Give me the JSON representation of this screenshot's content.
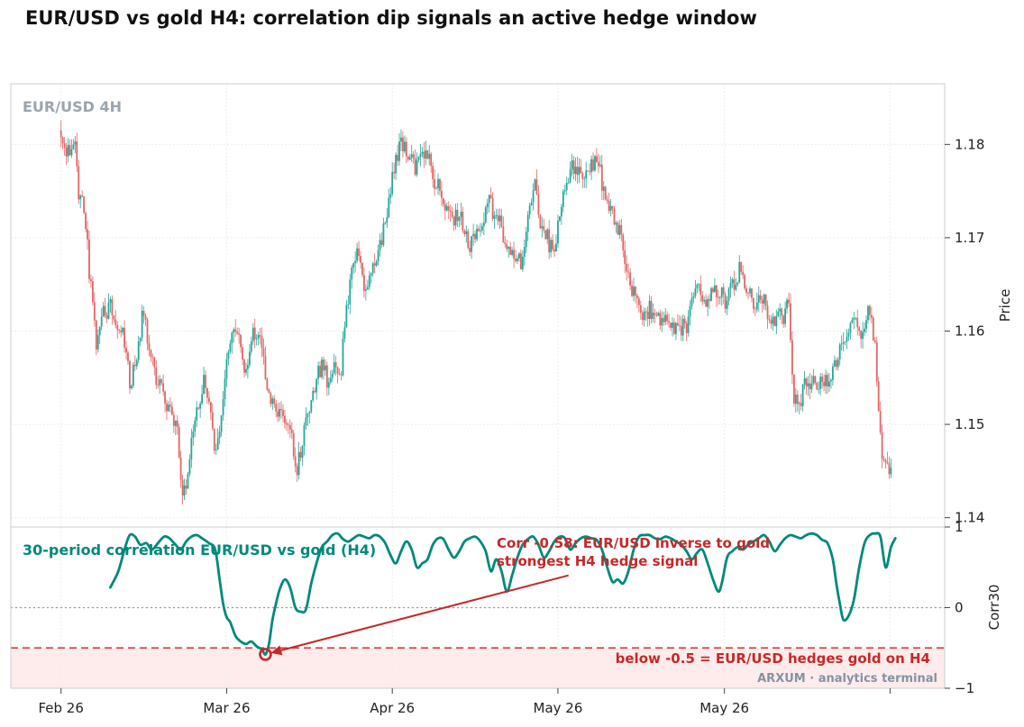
{
  "title": "EUR/USD vs gold H4: correlation dip signals an active hedge window",
  "watermark": "ARXUM · analytics terminal",
  "colors": {
    "up": "#26a69a",
    "down": "#e06666",
    "corr": "#00897b",
    "threshold": "#d64545",
    "annotation": "#c62828",
    "label_gray": "#9aa4ad",
    "watermark_gray": "#8592a3"
  },
  "chart_data": [
    {
      "type": "candlestick",
      "panel_label": "EUR/USD  4H",
      "ylabel": "Price",
      "ylim": [
        1.139,
        1.1865
      ],
      "yticks": [
        1.14,
        1.15,
        1.16,
        1.17,
        1.18
      ],
      "ytick_labels": [
        "1.14",
        "1.15",
        "1.16",
        "1.17",
        "1.18"
      ],
      "xlim": [
        -7,
        1053
      ],
      "xticks": [
        50,
        238,
        426,
        614,
        803,
        991
      ],
      "xtick_labels": [
        "Feb 26",
        "Mar 26",
        "Apr 26",
        "May 26",
        "May 26",
        ""
      ],
      "grid": true,
      "candle_count": 472,
      "candle_spacing": 2,
      "price_path": [
        [
          50,
          1.1815
        ],
        [
          60,
          1.1792
        ],
        [
          68,
          1.1805
        ],
        [
          72,
          1.1745
        ],
        [
          78,
          1.1735
        ],
        [
          85,
          1.1655
        ],
        [
          92,
          1.1585
        ],
        [
          100,
          1.1618
        ],
        [
          108,
          1.1625
        ],
        [
          115,
          1.1602
        ],
        [
          122,
          1.1598
        ],
        [
          130,
          1.1545
        ],
        [
          138,
          1.1572
        ],
        [
          145,
          1.1622
        ],
        [
          150,
          1.1595
        ],
        [
          158,
          1.1555
        ],
        [
          165,
          1.1548
        ],
        [
          172,
          1.1518
        ],
        [
          178,
          1.1505
        ],
        [
          185,
          1.1485
        ],
        [
          190,
          1.1425
        ],
        [
          195,
          1.1445
        ],
        [
          200,
          1.1475
        ],
        [
          208,
          1.1525
        ],
        [
          215,
          1.1545
        ],
        [
          222,
          1.1515
        ],
        [
          228,
          1.1465
        ],
        [
          233,
          1.1498
        ],
        [
          240,
          1.1575
        ],
        [
          248,
          1.1612
        ],
        [
          255,
          1.1588
        ],
        [
          262,
          1.1555
        ],
        [
          270,
          1.1602
        ],
        [
          278,
          1.1592
        ],
        [
          285,
          1.1545
        ],
        [
          292,
          1.1525
        ],
        [
          300,
          1.1515
        ],
        [
          308,
          1.1505
        ],
        [
          313,
          1.1485
        ],
        [
          320,
          1.1452
        ],
        [
          325,
          1.1475
        ],
        [
          332,
          1.1518
        ],
        [
          340,
          1.1542
        ],
        [
          348,
          1.1568
        ],
        [
          355,
          1.1542
        ],
        [
          362,
          1.1558
        ],
        [
          370,
          1.1562
        ],
        [
          376,
          1.1628
        ],
        [
          383,
          1.1668
        ],
        [
          390,
          1.1688
        ],
        [
          396,
          1.1648
        ],
        [
          402,
          1.1662
        ],
        [
          410,
          1.1672
        ],
        [
          418,
          1.1705
        ],
        [
          425,
          1.1748
        ],
        [
          432,
          1.1782
        ],
        [
          438,
          1.1802
        ],
        [
          445,
          1.1788
        ],
        [
          452,
          1.1775
        ],
        [
          460,
          1.1785
        ],
        [
          468,
          1.1792
        ],
        [
          474,
          1.1765
        ],
        [
          480,
          1.1755
        ],
        [
          488,
          1.1735
        ],
        [
          495,
          1.1718
        ],
        [
          502,
          1.1728
        ],
        [
          508,
          1.1712
        ],
        [
          515,
          1.1692
        ],
        [
          522,
          1.1702
        ],
        [
          530,
          1.1722
        ],
        [
          538,
          1.1738
        ],
        [
          545,
          1.1725
        ],
        [
          552,
          1.1708
        ],
        [
          560,
          1.1688
        ],
        [
          568,
          1.1682
        ],
        [
          575,
          1.1672
        ],
        [
          582,
          1.1715
        ],
        [
          590,
          1.1752
        ],
        [
          595,
          1.1718
        ],
        [
          602,
          1.1702
        ],
        [
          610,
          1.1688
        ],
        [
          618,
          1.1715
        ],
        [
          625,
          1.1758
        ],
        [
          632,
          1.1775
        ],
        [
          640,
          1.1768
        ],
        [
          648,
          1.1768
        ],
        [
          655,
          1.1782
        ],
        [
          662,
          1.1778
        ],
        [
          668,
          1.1752
        ],
        [
          675,
          1.1735
        ],
        [
          682,
          1.1718
        ],
        [
          690,
          1.1692
        ],
        [
          698,
          1.1652
        ],
        [
          705,
          1.1628
        ],
        [
          712,
          1.1618
        ],
        [
          720,
          1.1625
        ],
        [
          728,
          1.1612
        ],
        [
          735,
          1.1605
        ],
        [
          742,
          1.1612
        ],
        [
          748,
          1.1602
        ],
        [
          755,
          1.1605
        ],
        [
          762,
          1.1602
        ],
        [
          770,
          1.1638
        ],
        [
          778,
          1.1642
        ],
        [
          785,
          1.1635
        ],
        [
          792,
          1.1642
        ],
        [
          800,
          1.1638
        ],
        [
          808,
          1.1632
        ],
        [
          815,
          1.1648
        ],
        [
          822,
          1.1668
        ],
        [
          830,
          1.1645
        ],
        [
          838,
          1.1628
        ],
        [
          845,
          1.1635
        ],
        [
          852,
          1.1628
        ],
        [
          858,
          1.1608
        ],
        [
          865,
          1.1612
        ],
        [
          872,
          1.1618
        ],
        [
          878,
          1.1628
        ],
        [
          884,
          1.1528
        ],
        [
          890,
          1.1518
        ],
        [
          896,
          1.1542
        ],
        [
          902,
          1.1548
        ],
        [
          910,
          1.1542
        ],
        [
          918,
          1.1545
        ],
        [
          925,
          1.1545
        ],
        [
          932,
          1.1568
        ],
        [
          940,
          1.1585
        ],
        [
          948,
          1.1605
        ],
        [
          955,
          1.1612
        ],
        [
          962,
          1.1598
        ],
        [
          968,
          1.1618
        ],
        [
          975,
          1.1595
        ],
        [
          980,
          1.1512
        ],
        [
          985,
          1.1462
        ],
        [
          990,
          1.1448
        ],
        [
          995,
          1.1452
        ],
        [
          1000,
          1.1472
        ]
      ]
    },
    {
      "type": "line",
      "panel_label": "30-period correlation  EUR/USD vs gold  (H4)",
      "ylabel": "Corr30",
      "ylim": [
        -1,
        1
      ],
      "yticks": [
        -1,
        0,
        1
      ],
      "ytick_labels": [
        "−1",
        "0",
        "1"
      ],
      "xlim": [
        -7,
        1053
      ],
      "grid": true,
      "zero_line": 0,
      "threshold": -0.5,
      "threshold_label": "below -0.5 = EUR/USD hedges gold on H4",
      "series": [
        {
          "x": [
            106,
            115,
            122,
            128,
            134,
            140,
            147,
            153,
            160,
            167,
            173,
            180,
            186,
            192,
            198,
            204,
            210,
            218,
            225,
            230,
            234,
            238,
            242,
            248,
            254,
            260,
            266,
            272,
            278,
            282,
            286,
            290,
            294,
            298,
            304,
            310,
            316,
            322,
            328,
            334,
            340,
            346,
            352,
            358,
            364,
            370,
            376,
            382,
            388,
            394,
            400,
            406,
            412,
            418,
            424,
            430,
            436,
            442,
            448,
            454,
            460,
            466,
            472,
            478,
            484,
            490,
            496,
            502,
            508,
            514,
            520,
            526,
            532,
            538,
            544,
            550,
            556,
            562,
            568,
            574,
            580,
            586,
            592,
            598,
            604,
            610,
            616,
            622,
            628,
            634,
            640,
            646,
            652,
            658,
            664,
            670,
            676,
            682,
            688,
            694,
            700,
            706,
            712,
            718,
            724,
            730,
            736,
            742,
            748,
            754,
            760,
            766,
            772,
            778,
            784,
            790,
            796,
            800,
            806,
            812,
            818,
            824,
            830,
            836,
            842,
            848,
            854,
            860,
            866,
            872,
            878,
            884,
            890,
            896,
            902,
            908,
            914,
            920,
            926,
            930,
            934,
            938,
            944,
            950,
            956,
            962,
            968,
            974,
            980,
            986,
            992,
            997
          ],
          "y": [
            0.25,
            0.45,
            0.72,
            0.9,
            0.88,
            0.78,
            0.8,
            0.72,
            0.8,
            0.88,
            0.86,
            0.78,
            0.72,
            0.82,
            0.88,
            0.9,
            0.86,
            0.8,
            0.72,
            0.35,
            0.05,
            -0.12,
            -0.18,
            -0.35,
            -0.42,
            -0.45,
            -0.42,
            -0.48,
            -0.52,
            -0.58,
            -0.45,
            -0.15,
            0.05,
            0.22,
            0.35,
            0.25,
            0.0,
            -0.05,
            -0.02,
            0.3,
            0.55,
            0.75,
            0.82,
            0.9,
            0.92,
            0.85,
            0.82,
            0.86,
            0.9,
            0.88,
            0.86,
            0.9,
            0.88,
            0.8,
            0.65,
            0.55,
            0.7,
            0.82,
            0.72,
            0.5,
            0.55,
            0.6,
            0.78,
            0.86,
            0.85,
            0.72,
            0.62,
            0.7,
            0.82,
            0.86,
            0.88,
            0.82,
            0.7,
            0.45,
            0.6,
            0.45,
            0.2,
            0.4,
            0.62,
            0.78,
            0.85,
            0.88,
            0.78,
            0.62,
            0.7,
            0.82,
            0.88,
            0.86,
            0.72,
            0.8,
            0.86,
            0.88,
            0.86,
            0.84,
            0.72,
            0.5,
            0.32,
            0.35,
            0.3,
            0.45,
            0.72,
            0.88,
            0.9,
            0.9,
            0.86,
            0.85,
            0.88,
            0.86,
            0.82,
            0.78,
            0.7,
            0.6,
            0.68,
            0.72,
            0.55,
            0.35,
            0.2,
            0.3,
            0.62,
            0.7,
            0.75,
            0.72,
            0.78,
            0.82,
            0.86,
            0.9,
            0.82,
            0.7,
            0.78,
            0.86,
            0.9,
            0.88,
            0.86,
            0.9,
            0.92,
            0.9,
            0.84,
            0.8,
            0.6,
            0.3,
            0.05,
            -0.15,
            -0.1,
            0.1,
            0.5,
            0.8,
            0.9,
            0.92,
            0.88,
            0.5,
            0.75,
            0.86
          ]
        }
      ],
      "annotations": [
        {
          "text_lines": [
            "Corr -0.58: EUR/USD inverse to gold",
            "strongest H4 hedge signal"
          ],
          "point": [
            282,
            -0.58
          ],
          "text_at": [
            626,
            0.4
          ]
        }
      ]
    }
  ]
}
